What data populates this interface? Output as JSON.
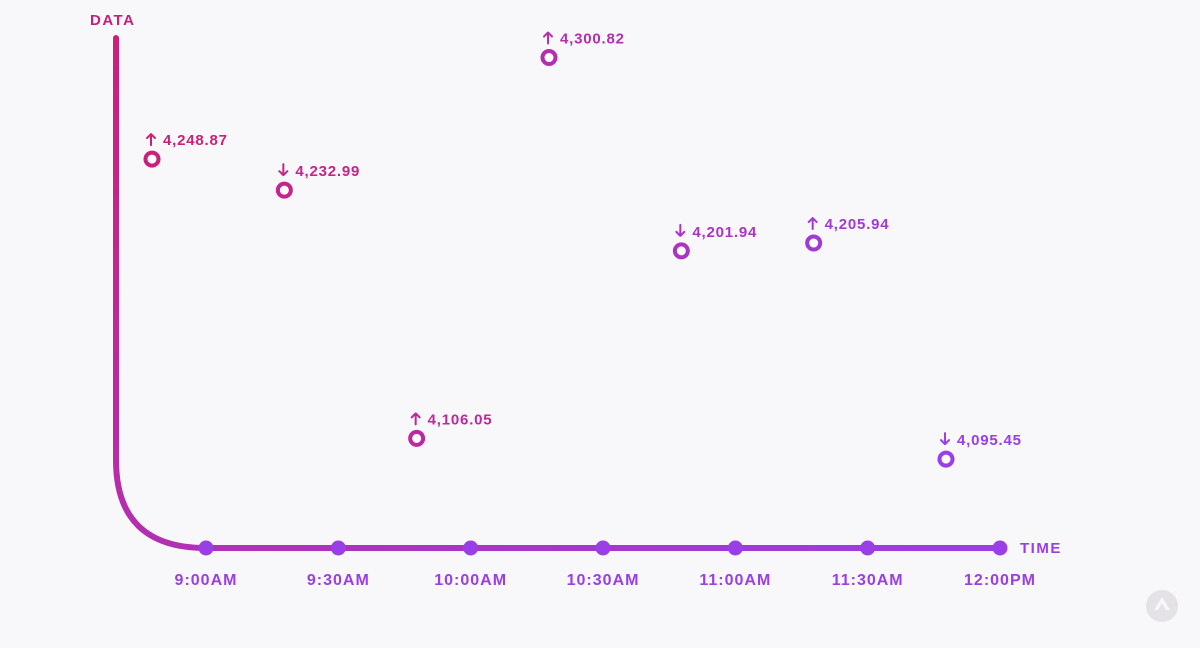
{
  "chart_data": {
    "type": "scatter",
    "title": "",
    "xlabel": "TIME",
    "ylabel": "DATA",
    "x_ticks": [
      "9:00AM",
      "9:30AM",
      "10:00AM",
      "10:30AM",
      "11:00AM",
      "11:30AM",
      "12:00PM"
    ],
    "x_range": [
      "9:00AM",
      "12:00PM"
    ],
    "ylim": [
      4050,
      4320
    ],
    "grid": false,
    "points": [
      {
        "x": "9:00AM",
        "y": 4248.87,
        "label": "4,248.87",
        "direction": "up"
      },
      {
        "x": "9:30AM",
        "y": 4232.99,
        "label": "4,232.99",
        "direction": "down"
      },
      {
        "x": "10:00AM",
        "y": 4106.05,
        "label": "4,106.05",
        "direction": "up"
      },
      {
        "x": "10:30AM",
        "y": 4300.82,
        "label": "4,300.82",
        "direction": "up"
      },
      {
        "x": "11:00AM",
        "y": 4201.94,
        "label": "4,201.94",
        "direction": "down"
      },
      {
        "x": "11:30AM",
        "y": 4205.94,
        "label": "4,205.94",
        "direction": "up"
      },
      {
        "x": "12:00PM",
        "y": 4095.45,
        "label": "4,095.45",
        "direction": "down"
      }
    ],
    "colors": {
      "start": "#cc1f7a",
      "end": "#9a3ee6",
      "background": "#f8f7f9"
    }
  },
  "corner_icon": "logo-badge-icon"
}
